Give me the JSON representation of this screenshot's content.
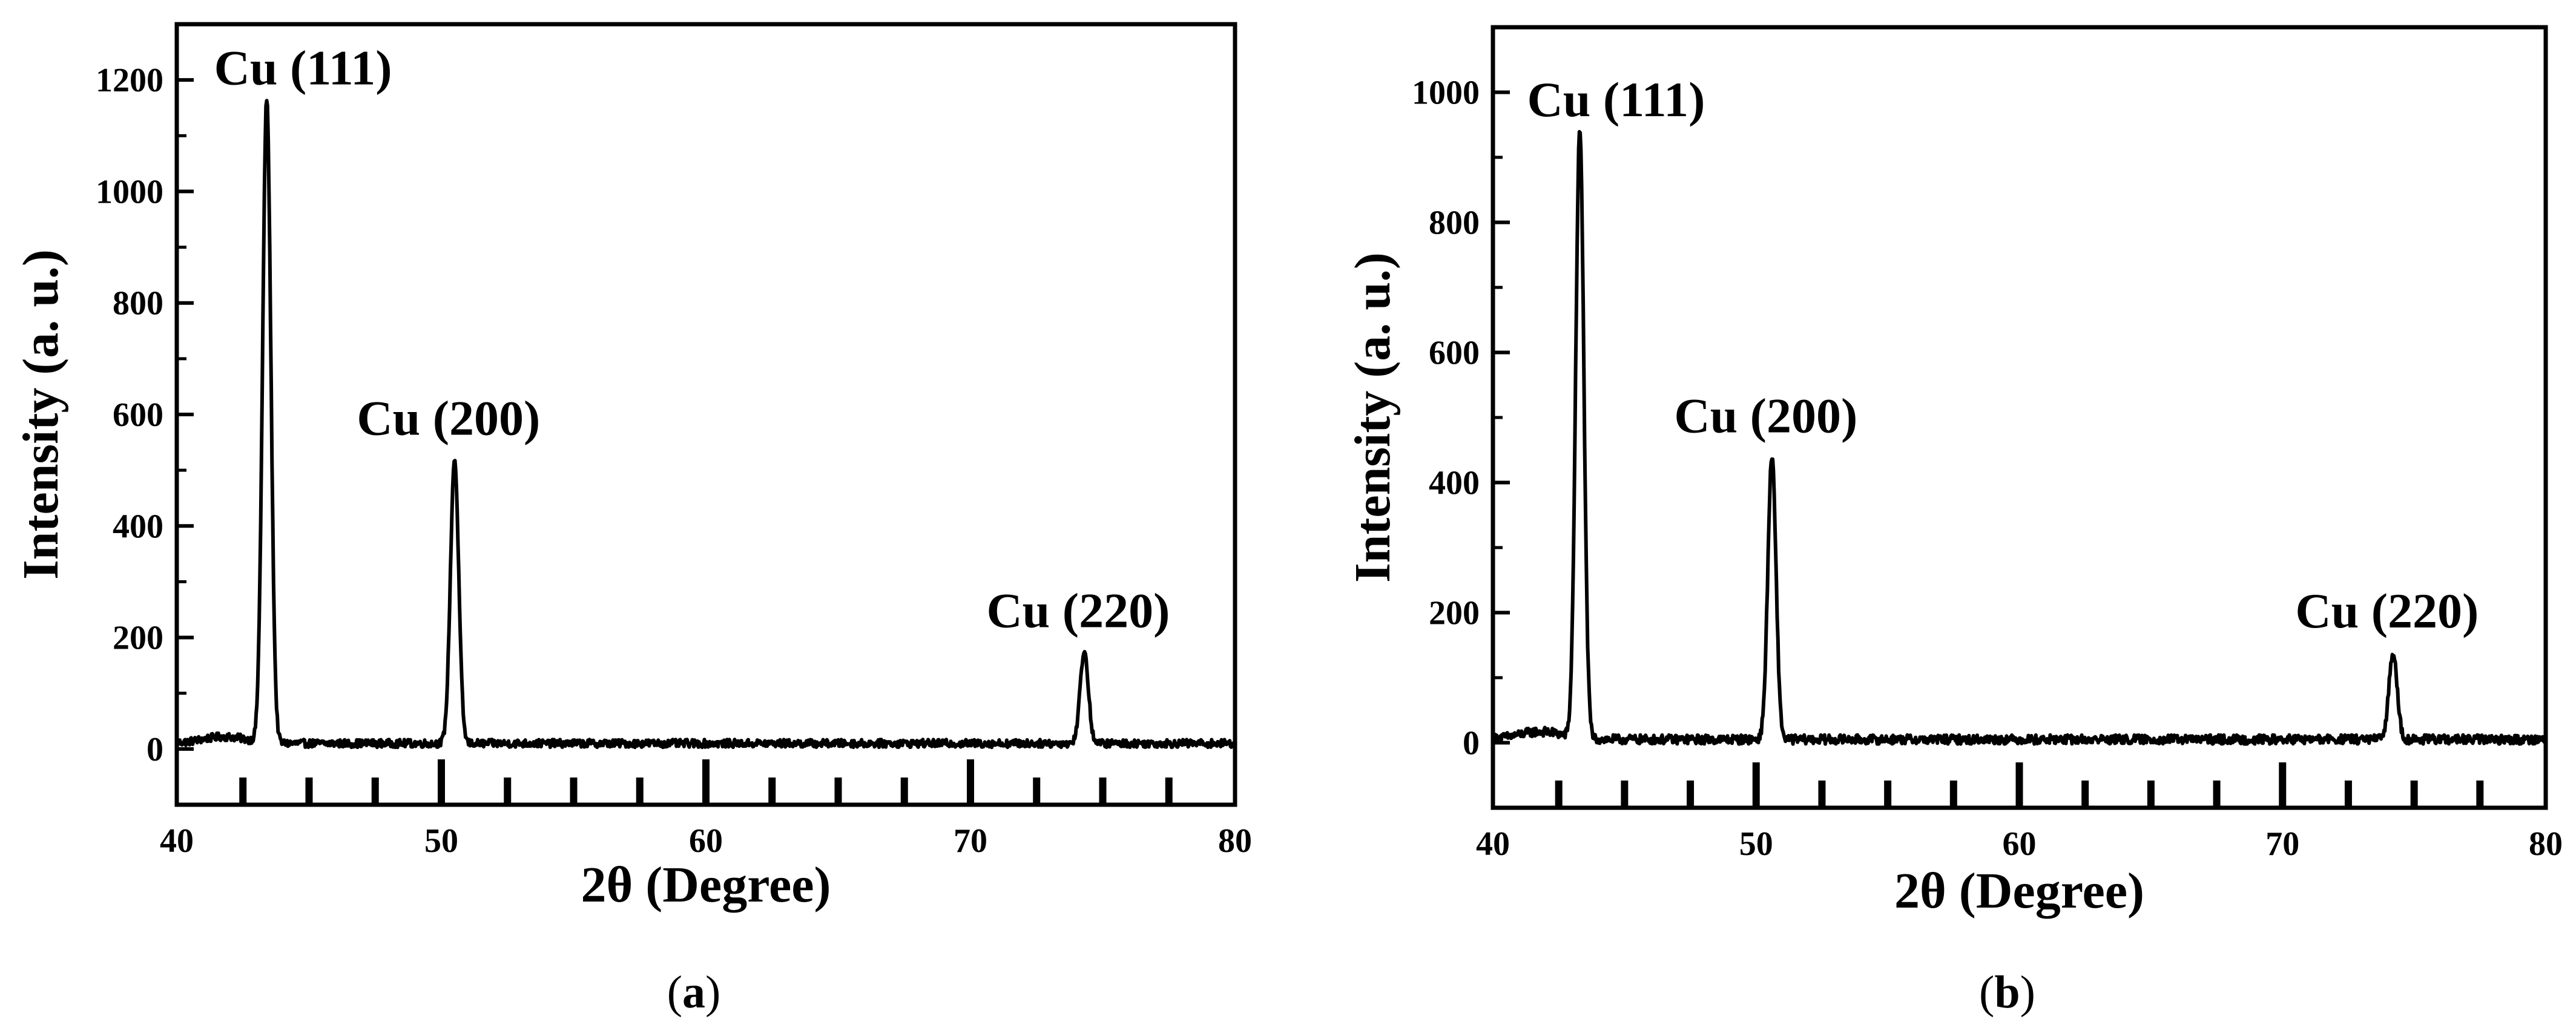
{
  "chart_data": [
    {
      "type": "line",
      "panel_label": "a",
      "xlabel": "2θ (Degree)",
      "ylabel": "Intensity (a. u.)",
      "xlim": [
        40,
        80
      ],
      "ylim": [
        -100,
        1300
      ],
      "x_ticks": [
        40,
        50,
        60,
        70,
        80
      ],
      "y_ticks": [
        0,
        200,
        400,
        600,
        800,
        1000,
        1200
      ],
      "baseline": 10,
      "peaks": [
        {
          "x": 43.4,
          "y": 1165,
          "label": "Cu (111)"
        },
        {
          "x": 50.5,
          "y": 520,
          "label": "Cu (200)"
        },
        {
          "x": 74.3,
          "y": 175,
          "label": "Cu (220)"
        }
      ],
      "reference_lines_x": [
        42.5,
        45,
        47.5,
        50,
        52.5,
        55,
        57.5,
        60,
        62.5,
        65,
        67.5,
        70,
        72.5,
        75,
        77.5
      ],
      "grid": false,
      "legend": "none"
    },
    {
      "type": "line",
      "panel_label": "b",
      "xlabel": "2θ (Degree)",
      "ylabel": "Intensity (a. u.)",
      "xlim": [
        40,
        80
      ],
      "ylim": [
        -100,
        1100
      ],
      "x_ticks": [
        40,
        50,
        60,
        70,
        80
      ],
      "y_ticks": [
        0,
        200,
        400,
        600,
        800,
        1000
      ],
      "baseline": 5,
      "peaks": [
        {
          "x": 43.3,
          "y": 940,
          "label": "Cu (111)"
        },
        {
          "x": 50.6,
          "y": 440,
          "label": "Cu (200)"
        },
        {
          "x": 74.2,
          "y": 140,
          "label": "Cu (220)"
        }
      ],
      "reference_lines_x": [
        42.5,
        45,
        47.5,
        50,
        52.5,
        55,
        57.5,
        60,
        62.5,
        65,
        67.5,
        70,
        72.5,
        75,
        77.5
      ],
      "grid": false,
      "legend": "none"
    }
  ]
}
